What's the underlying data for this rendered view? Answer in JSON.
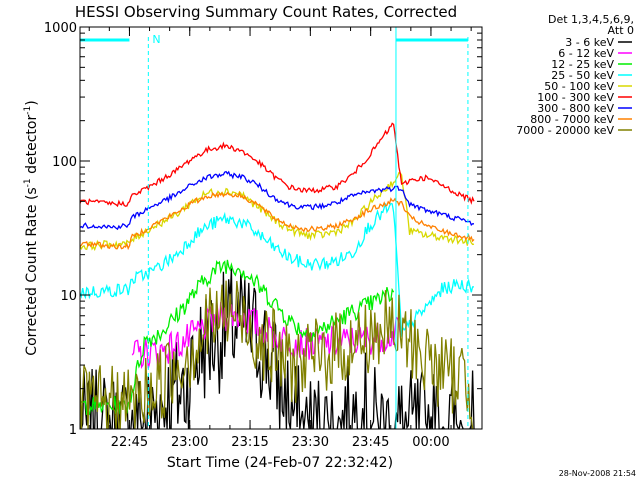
{
  "chart_data": {
    "type": "line",
    "title": "HESSI Observing Summary Count Rates, Corrected",
    "xlabel": "Start Time (24-Feb-07 22:32:42)",
    "ylabel": "Corrected Count Rate (s",
    "ylabel_sup": "-1",
    "ylabel_tail": " detector",
    "ylabel_tail_sup": "-1",
    "ylabel_end": ")",
    "yscale": "log",
    "ylim": [
      1,
      1000
    ],
    "xlim_minutes_after_start": [
      0,
      100
    ],
    "x_ticks": [
      {
        "label": "22:45",
        "minutes": 12.3
      },
      {
        "label": "23:00",
        "minutes": 27.3
      },
      {
        "label": "23:15",
        "minutes": 42.3
      },
      {
        "label": "23:30",
        "minutes": 57.3
      },
      {
        "label": "23:45",
        "minutes": 72.3
      },
      {
        "label": "00:00",
        "minutes": 87.3
      }
    ],
    "y_ticks": [
      {
        "label": "1",
        "value": 1
      },
      {
        "label": "10",
        "value": 10
      },
      {
        "label": "100",
        "value": 100
      },
      {
        "label": "1000",
        "value": 1000
      }
    ],
    "legend_header": [
      "Det 1,3,4,5,6,9,",
      "Att 0"
    ],
    "legend_position": "right",
    "series": [
      {
        "name": "3 - 6 keV",
        "color": "#000000",
        "x": [
          0,
          8,
          14,
          20,
          26,
          30,
          34,
          38,
          42,
          46,
          50,
          55,
          60,
          66,
          70,
          74,
          78,
          82,
          86,
          90,
          94,
          98
        ],
        "values": [
          1,
          1,
          1,
          1.5,
          2,
          4,
          5,
          6,
          5.5,
          4,
          2,
          1,
          1,
          1,
          1.5,
          1,
          1,
          1,
          1,
          1,
          1,
          1
        ]
      },
      {
        "name": "6 - 12 keV",
        "color": "#ff00ff",
        "x": [
          13,
          14,
          20,
          26,
          30,
          34,
          38,
          42,
          46,
          50,
          56,
          62,
          70,
          78,
          80
        ],
        "values": [
          3.5,
          3.6,
          3.8,
          4.5,
          5.5,
          6.8,
          7.2,
          6.5,
          5.5,
          4.8,
          4.3,
          4.4,
          4.6,
          5.1,
          5.5
        ]
      },
      {
        "name": "12 - 25 keV",
        "color": "#00ee00",
        "x": [
          0,
          4,
          8,
          12,
          16,
          20,
          24,
          28,
          32,
          36,
          40,
          44,
          48,
          52,
          56,
          60,
          64,
          68,
          72,
          76,
          78
        ],
        "values": [
          1.5,
          1.5,
          1.5,
          1.5,
          4.5,
          5.2,
          7,
          10,
          14,
          17,
          16,
          12,
          9,
          6.5,
          5.2,
          5.5,
          6.5,
          7.5,
          8.5,
          9.8,
          10.5
        ]
      },
      {
        "name": "25 - 50 keV",
        "color": "#00ffff",
        "x": [
          0,
          4,
          8,
          12,
          13,
          18,
          24,
          28,
          32,
          36,
          40,
          44,
          48,
          52,
          56,
          60,
          64,
          68,
          72,
          76,
          78,
          80,
          82,
          86,
          90,
          94,
          98
        ],
        "values": [
          10.5,
          10.6,
          10.8,
          11,
          13,
          15,
          20,
          27,
          33,
          37,
          35,
          29,
          23,
          19,
          17,
          17,
          18,
          21,
          33,
          43,
          45,
          5,
          6,
          8,
          11,
          12,
          11.5
        ]
      },
      {
        "name": "50 - 100 keV",
        "color": "#d8d800",
        "x": [
          0,
          4,
          8,
          12,
          13,
          18,
          24,
          28,
          32,
          36,
          40,
          44,
          48,
          52,
          56,
          60,
          64,
          68,
          72,
          76,
          80,
          82,
          86,
          90,
          94,
          98
        ],
        "values": [
          23,
          23.5,
          24,
          24,
          26,
          32,
          40,
          50,
          58,
          60,
          57,
          46,
          37,
          31,
          28,
          28,
          30,
          35,
          48,
          62,
          80,
          30,
          28,
          27,
          26,
          24
        ]
      },
      {
        "name": "100 - 300 keV",
        "color": "#ff0000",
        "x": [
          0,
          4,
          8,
          12,
          13,
          18,
          24,
          28,
          32,
          36,
          40,
          44,
          48,
          52,
          56,
          60,
          64,
          68,
          72,
          76,
          78,
          80,
          82,
          86,
          90,
          94,
          98
        ],
        "values": [
          50,
          49,
          48,
          48,
          55,
          66,
          85,
          105,
          122,
          130,
          120,
          100,
          78,
          64,
          60,
          61,
          65,
          80,
          110,
          160,
          190,
          65,
          72,
          75,
          66,
          57,
          50
        ]
      },
      {
        "name": "300 - 800 keV",
        "color": "#0000ff",
        "x": [
          0,
          4,
          8,
          12,
          13,
          18,
          24,
          28,
          32,
          36,
          40,
          44,
          48,
          52,
          56,
          60,
          64,
          68,
          72,
          76,
          80,
          82,
          86,
          90,
          94,
          98
        ],
        "values": [
          33,
          33,
          32,
          33,
          38,
          46,
          56,
          67,
          76,
          80,
          77,
          67,
          54,
          47,
          45,
          46,
          49,
          55,
          59,
          62,
          63,
          48,
          43,
          40,
          37,
          34
        ]
      },
      {
        "name": "800 - 7000 keV",
        "color": "#ff8000",
        "x": [
          0,
          4,
          8,
          12,
          13,
          18,
          24,
          28,
          32,
          36,
          40,
          44,
          48,
          52,
          56,
          60,
          64,
          68,
          72,
          76,
          78,
          80,
          82,
          86,
          90,
          94,
          98
        ],
        "values": [
          24,
          24,
          23,
          23,
          27,
          33,
          41,
          49,
          55,
          57,
          55,
          48,
          38,
          33,
          31,
          31,
          33,
          37,
          43,
          48,
          51,
          48,
          38,
          33,
          30,
          28,
          26
        ]
      },
      {
        "name": "7000 - 20000 keV",
        "color": "#808000",
        "x": [
          0,
          4,
          8,
          12,
          16,
          20,
          24,
          28,
          32,
          36,
          40,
          44,
          48,
          52,
          56,
          60,
          64,
          68,
          72,
          76,
          78,
          80,
          84,
          88,
          92,
          96,
          98
        ],
        "values": [
          1.5,
          1.5,
          1.5,
          1.5,
          1.8,
          2.2,
          3,
          4,
          6,
          7.5,
          7,
          5,
          4,
          3,
          3.2,
          3.5,
          4,
          4.2,
          5,
          5.5,
          5.5,
          5,
          4,
          3,
          2.5,
          2.5,
          1
        ]
      }
    ],
    "markers": [
      {
        "kind": "bar",
        "color": "#00ffff",
        "label": "N"
      },
      {
        "kind": "bar",
        "color": "#00ffff",
        "label": ""
      }
    ],
    "timestamp": "28-Nov-2008 21:54"
  }
}
